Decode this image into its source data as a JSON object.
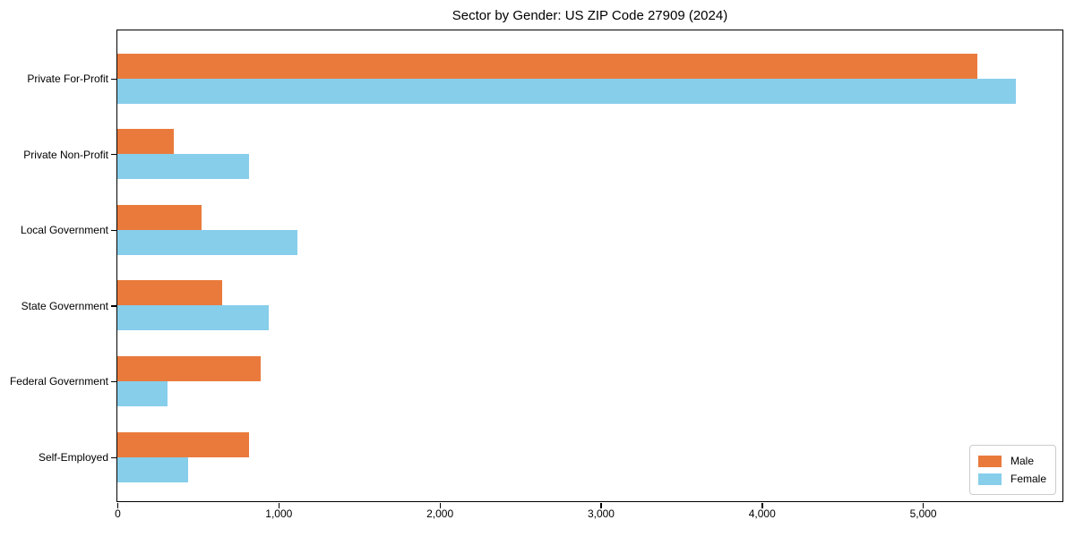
{
  "chart_data": {
    "type": "bar",
    "orientation": "horizontal",
    "title": "Sector by Gender: US ZIP Code 27909 (2024)",
    "categories": [
      "Private For-Profit",
      "Private Non-Profit",
      "Local Government",
      "State Government",
      "Federal Government",
      "Self-Employed"
    ],
    "series": [
      {
        "name": "Male",
        "color": "#e97a3c",
        "values": [
          5340,
          350,
          520,
          650,
          890,
          820
        ]
      },
      {
        "name": "Female",
        "color": "#87ceeb",
        "values": [
          5580,
          820,
          1120,
          940,
          310,
          440
        ]
      }
    ],
    "xlim": [
      0,
      5867
    ],
    "x_ticks": [
      {
        "value": 0,
        "label": "0"
      },
      {
        "value": 1000,
        "label": "1,000"
      },
      {
        "value": 2000,
        "label": "2,000"
      },
      {
        "value": 3000,
        "label": "3,000"
      },
      {
        "value": 4000,
        "label": "4,000"
      },
      {
        "value": 5000,
        "label": "5,000"
      }
    ],
    "grid": false,
    "legend_position": "lower right",
    "axis_color": "#000000",
    "background_color": "#ffffff"
  }
}
